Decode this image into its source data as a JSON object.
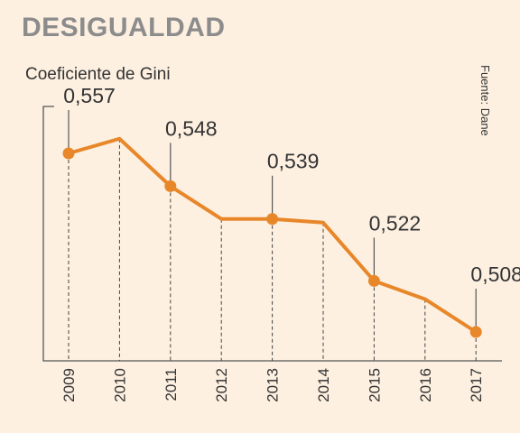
{
  "page": {
    "title": "DESIGUALDAD",
    "source": "Fuente: Dane"
  },
  "colors": {
    "background": "#fdf0e1",
    "line": "#e8872a",
    "title": "#8c8c8c",
    "text": "#333333"
  },
  "chart_data": {
    "type": "line",
    "ylabel": "Coeficiente de Gini",
    "x": [
      "2009",
      "2010",
      "2011",
      "2012",
      "2013",
      "2014",
      "2015",
      "2016",
      "2017"
    ],
    "series": [
      {
        "values": [
          0.557,
          0.561,
          0.548,
          0.539,
          0.539,
          0.538,
          0.522,
          0.517,
          0.508
        ],
        "markers": [
          true,
          false,
          true,
          false,
          true,
          false,
          true,
          false,
          true
        ]
      }
    ],
    "data_labels": [
      {
        "year": "2009",
        "text": "0,557"
      },
      {
        "year": "2011",
        "text": "0,548"
      },
      {
        "year": "2013",
        "text": "0,539"
      },
      {
        "year": "2015",
        "text": "0,522"
      },
      {
        "year": "2017",
        "text": "0,508"
      }
    ],
    "grid": "vertical dashed",
    "legend": "none"
  }
}
